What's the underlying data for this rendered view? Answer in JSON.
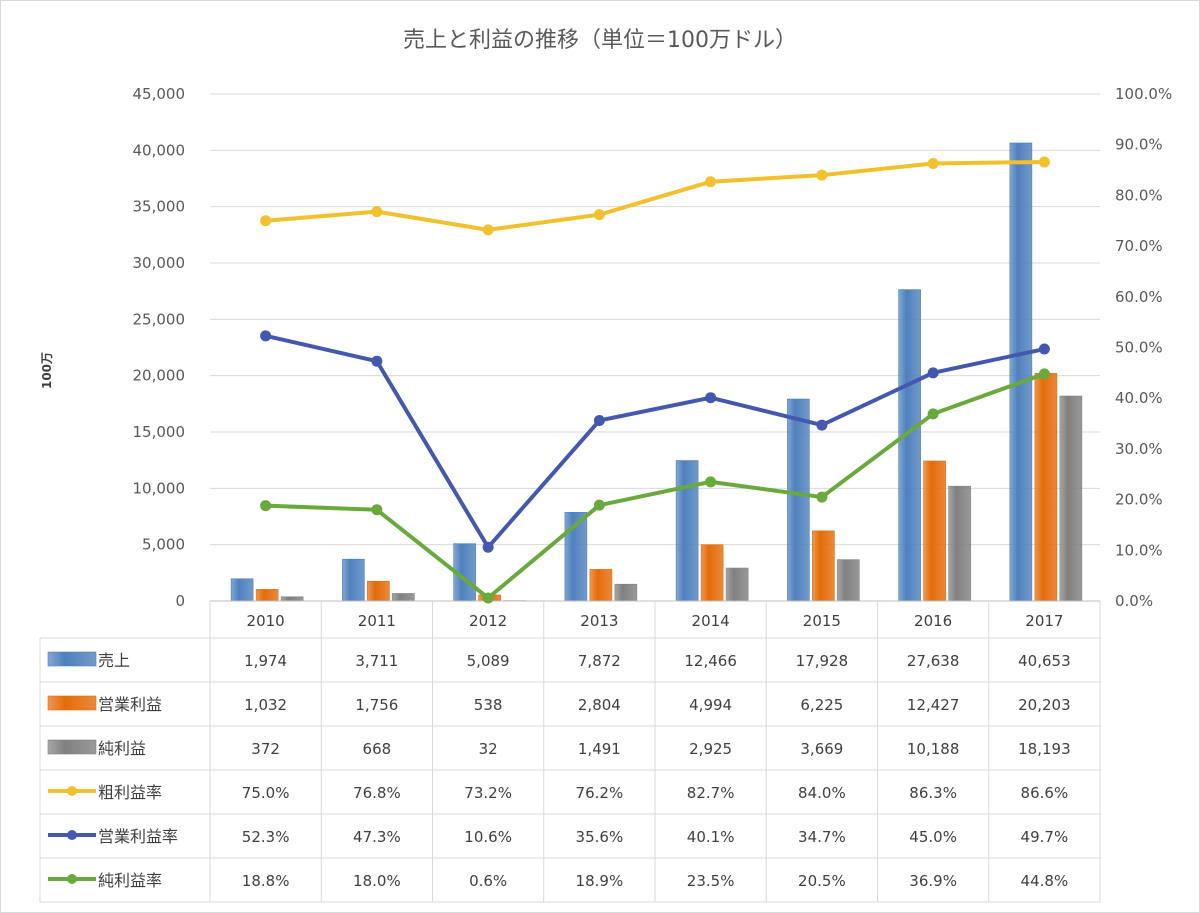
{
  "chart_data": {
    "type": "bar",
    "title": "売上と利益の推移（単位＝100万ドル）",
    "ylabel": "100万",
    "categories": [
      "2010",
      "2011",
      "2012",
      "2013",
      "2014",
      "2015",
      "2016",
      "2017"
    ],
    "ylim": [
      0,
      45000
    ],
    "y2lim": [
      0,
      100
    ],
    "y_ticks": [
      "0",
      "5,000",
      "10,000",
      "15,000",
      "20,000",
      "25,000",
      "30,000",
      "35,000",
      "40,000",
      "45,000"
    ],
    "y2_ticks": [
      "0.0%",
      "10.0%",
      "20.0%",
      "30.0%",
      "40.0%",
      "50.0%",
      "60.0%",
      "70.0%",
      "80.0%",
      "90.0%",
      "100.0%"
    ],
    "grid": true,
    "legend": "data-table",
    "bar_series": [
      {
        "name": "売上",
        "color": "#4f81bd",
        "values": [
          1974,
          3711,
          5089,
          7872,
          12466,
          17928,
          27638,
          40653
        ],
        "labels": [
          "1,974",
          "3,711",
          "5,089",
          "7,872",
          "12,466",
          "17,928",
          "27,638",
          "40,653"
        ]
      },
      {
        "name": "営業利益",
        "color": "#e46c0a",
        "values": [
          1032,
          1756,
          538,
          2804,
          4994,
          6225,
          12427,
          20203
        ],
        "labels": [
          "1,032",
          "1,756",
          "538",
          "2,804",
          "4,994",
          "6,225",
          "12,427",
          "20,203"
        ]
      },
      {
        "name": "純利益",
        "color": "#808080",
        "values": [
          372,
          668,
          32,
          1491,
          2925,
          3669,
          10188,
          18193
        ],
        "labels": [
          "372",
          "668",
          "32",
          "1,491",
          "2,925",
          "3,669",
          "10,188",
          "18,193"
        ]
      }
    ],
    "line_series": [
      {
        "name": "粗利益率",
        "color": "#f2c12e",
        "values": [
          75.0,
          76.8,
          73.2,
          76.2,
          82.7,
          84.0,
          86.3,
          86.6
        ],
        "labels": [
          "75.0%",
          "76.8%",
          "73.2%",
          "76.2%",
          "82.7%",
          "84.0%",
          "86.3%",
          "86.6%"
        ]
      },
      {
        "name": "営業利益率",
        "color": "#4458b0",
        "values": [
          52.3,
          47.3,
          10.6,
          35.6,
          40.1,
          34.7,
          45.0,
          49.7
        ],
        "labels": [
          "52.3%",
          "47.3%",
          "10.6%",
          "35.6%",
          "40.1%",
          "34.7%",
          "45.0%",
          "49.7%"
        ]
      },
      {
        "name": "純利益率",
        "color": "#6aaa3c",
        "values": [
          18.8,
          18.0,
          0.6,
          18.9,
          23.5,
          20.5,
          36.9,
          44.8
        ],
        "labels": [
          "18.8%",
          "18.0%",
          "0.6%",
          "18.9%",
          "23.5%",
          "20.5%",
          "36.9%",
          "44.8%"
        ]
      }
    ]
  }
}
